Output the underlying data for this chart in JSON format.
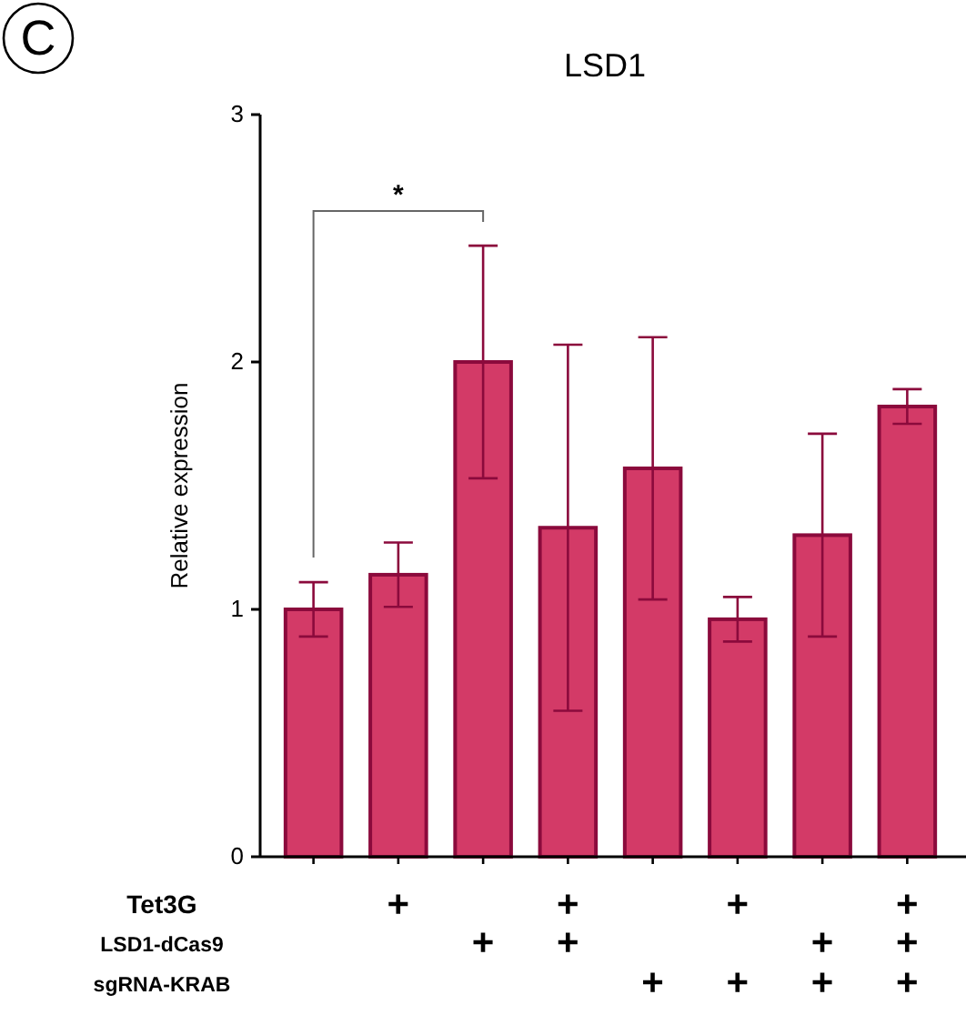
{
  "chart_data": [
    {
      "type": "bar",
      "title": "LSD1",
      "ylabel": "Relative expression",
      "categories": [
        null,
        null,
        null,
        null,
        null,
        null,
        null,
        null
      ],
      "values": [
        1.0,
        1.14,
        2.0,
        1.33,
        1.57,
        0.96,
        1.3,
        1.82
      ],
      "errors": [
        0.11,
        0.13,
        0.47,
        0.74,
        0.53,
        0.09,
        0.41,
        0.07
      ],
      "color": "#d33a67",
      "ylim": [
        0,
        3
      ],
      "yticks": [
        0,
        1,
        2,
        3
      ],
      "grid": false,
      "annotations": [
        "C",
        "*"
      ]
    },
    {
      "type": "other",
      "categories": [
        null,
        null,
        null,
        null,
        null,
        null,
        null,
        null
      ],
      "y_categories": [
        "Tet3G",
        "LSD1-dCas9",
        "sgRNA-KRAB"
      ],
      "cell_labels": [
        [
          null,
          "+",
          null,
          "+",
          null,
          "+",
          null,
          "+"
        ],
        [
          null,
          null,
          "+",
          "+",
          null,
          null,
          "+",
          "+"
        ],
        [
          null,
          null,
          null,
          null,
          "+",
          "+",
          "+",
          "+"
        ]
      ]
    }
  ]
}
